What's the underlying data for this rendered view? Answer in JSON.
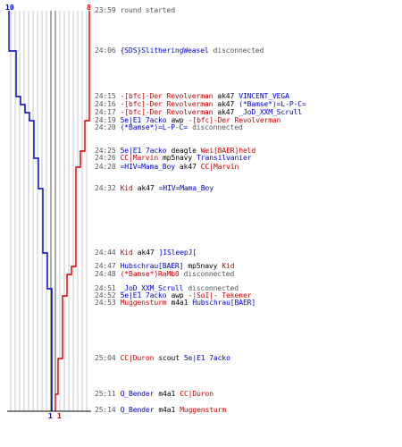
{
  "colors": {
    "blue": "#0000cc",
    "red": "#cc0000",
    "grey": "#555555",
    "gridline": "#c8c8c8",
    "baseline": "#000000"
  },
  "timeline": {
    "top_left_count": "10",
    "top_right_count": "8",
    "bottom_blue_count": "1",
    "bottom_red_count": "1"
  },
  "events": [
    {
      "time": "23:59",
      "parts": [
        {
          "text": "round started",
          "team": "grey"
        }
      ]
    },
    {
      "time": "24:06",
      "parts": [
        {
          "text": "{SDS}SlitheringWeasel",
          "team": "blue"
        },
        {
          "text": "disconnected",
          "team": "grey"
        }
      ]
    },
    {
      "time": "24:15",
      "parts": [
        {
          "text": "-[bfc]-Der Revolverman",
          "team": "red"
        },
        {
          "text": "ak47",
          "team": "black"
        },
        {
          "text": "VINCENT_VEGA",
          "team": "blue"
        }
      ]
    },
    {
      "time": "24:16",
      "parts": [
        {
          "text": "-[bfc]-Der Revolverman",
          "team": "red"
        },
        {
          "text": "ak47",
          "team": "black"
        },
        {
          "text": "(*Bamse*)=L-P-C=",
          "team": "blue"
        }
      ]
    },
    {
      "time": "24:17",
      "parts": [
        {
          "text": "-[bfc]-Der Revolverman",
          "team": "red"
        },
        {
          "text": "ak47",
          "team": "black"
        },
        {
          "text": "_JoD_XXM_Scrull",
          "team": "blue"
        }
      ]
    },
    {
      "time": "24:19",
      "parts": [
        {
          "text": "5e|E1 7acko",
          "team": "blue"
        },
        {
          "text": "awp",
          "team": "black"
        },
        {
          "text": "-[bfc]-Der Revolverman",
          "team": "red"
        }
      ]
    },
    {
      "time": "24:20",
      "parts": [
        {
          "text": "(*Bamse*)=L-P-C=",
          "team": "blue"
        },
        {
          "text": "disconnected",
          "team": "grey"
        }
      ]
    },
    {
      "time": "24:25",
      "parts": [
        {
          "text": "5e|E1 7acko",
          "team": "blue"
        },
        {
          "text": "deagle",
          "team": "black"
        },
        {
          "text": "Wei[BAER]held",
          "team": "red"
        }
      ]
    },
    {
      "time": "24:26",
      "parts": [
        {
          "text": "CC|Marvin",
          "team": "red"
        },
        {
          "text": "mp5navy",
          "team": "black"
        },
        {
          "text": "Transilvanier",
          "team": "blue"
        }
      ]
    },
    {
      "time": "24:28",
      "parts": [
        {
          "text": "=HIV=Mama_Boy",
          "team": "blue"
        },
        {
          "text": "ak47",
          "team": "black"
        },
        {
          "text": "CC|Marvin",
          "team": "red"
        }
      ]
    },
    {
      "time": "24:32",
      "parts": [
        {
          "text": "Kid",
          "team": "red"
        },
        {
          "text": "ak47",
          "team": "black"
        },
        {
          "text": "=HIV=Mama_Boy",
          "team": "blue"
        }
      ]
    },
    {
      "time": "24:44",
      "parts": [
        {
          "text": "Kid",
          "team": "red"
        },
        {
          "text": "ak47",
          "team": "black"
        },
        {
          "text": "]ISleepJ[",
          "team": "blue"
        }
      ]
    },
    {
      "time": "24:47",
      "parts": [
        {
          "text": "Hubschrau[BAER]",
          "team": "blue"
        },
        {
          "text": "mp5navy",
          "team": "black"
        },
        {
          "text": "Kid",
          "team": "red"
        }
      ]
    },
    {
      "time": "24:48",
      "parts": [
        {
          "text": "(*Bamse*)RaMb0",
          "team": "red"
        },
        {
          "text": "disconnected",
          "team": "grey"
        }
      ]
    },
    {
      "time": "24:51",
      "parts": [
        {
          "text": "_JoD_XXM_Scrull",
          "team": "blue"
        },
        {
          "text": "disconnected",
          "team": "grey"
        }
      ]
    },
    {
      "time": "24:52",
      "parts": [
        {
          "text": "5e|E1 7acko",
          "team": "blue"
        },
        {
          "text": "awp",
          "team": "black"
        },
        {
          "text": "-|SoI|- Tekener",
          "team": "red"
        }
      ]
    },
    {
      "time": "24:53",
      "parts": [
        {
          "text": "Muggensturm",
          "team": "red"
        },
        {
          "text": "m4a1",
          "team": "black"
        },
        {
          "text": "Hubschrau[BAER]",
          "team": "blue"
        }
      ]
    },
    {
      "time": "25:04",
      "parts": [
        {
          "text": "CC|Duron",
          "team": "red"
        },
        {
          "text": "scout",
          "team": "black"
        },
        {
          "text": "5e|E1 7acko",
          "team": "blue"
        }
      ]
    },
    {
      "time": "25:11",
      "parts": [
        {
          "text": "Q_Bender",
          "team": "blue"
        },
        {
          "text": "m4a1",
          "team": "black"
        },
        {
          "text": "CC|Duron",
          "team": "red"
        }
      ]
    },
    {
      "time": "25:14",
      "parts": [
        {
          "text": "Q_Bender",
          "team": "blue"
        },
        {
          "text": "m4a1",
          "team": "black"
        },
        {
          "text": "Muggensturm",
          "team": "red"
        }
      ]
    }
  ]
}
